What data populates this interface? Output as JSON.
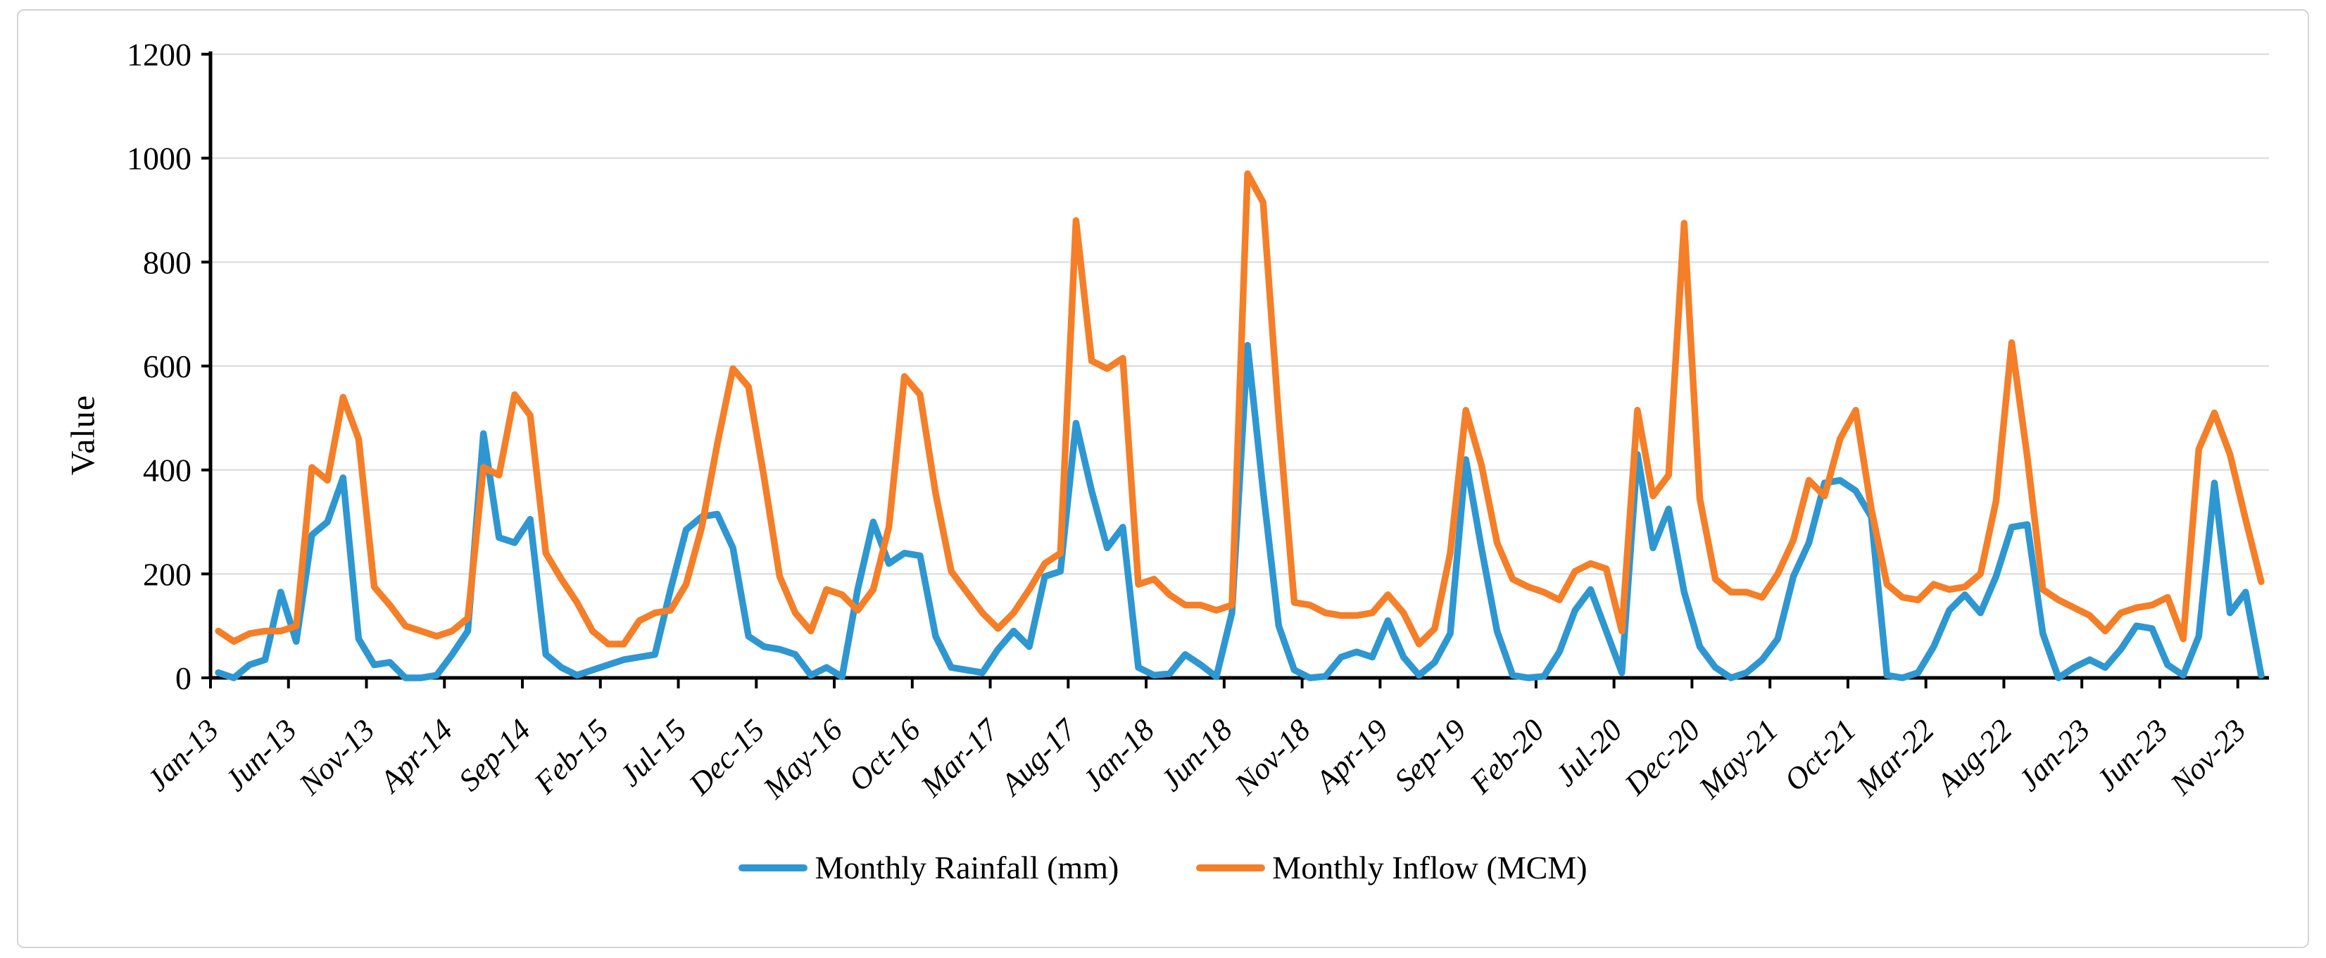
{
  "figure": {
    "y_axis_title": "Value",
    "background_color": "#FFFFFF",
    "card_border_color": "#D4D4D4",
    "gridline_color": "#D9D9D9",
    "axis_color": "#000000"
  },
  "legend": {
    "items": [
      {
        "label": "Monthly Rainfall (mm)",
        "color": "#2E97D1"
      },
      {
        "label": "Monthly Inflow (MCM)",
        "color": "#F47F28"
      }
    ]
  },
  "chart_data": {
    "type": "line",
    "title": "",
    "xlabel": "",
    "ylabel": "Value",
    "ylim": [
      0,
      1200
    ],
    "y_ticks": [
      0,
      200,
      400,
      600,
      800,
      1000,
      1200
    ],
    "grid": "horizontal",
    "legend_position": "bottom",
    "x_tick_every": 5,
    "x_tick_labels": [
      "Jan-13",
      "Jun-13",
      "Nov-13",
      "Apr-14",
      "Sep-14",
      "Feb-15",
      "Jul-15",
      "Dec-15",
      "May-16",
      "Oct-16",
      "Mar-17",
      "Aug-17",
      "Jan-18",
      "Jun-18",
      "Nov-18",
      "Apr-19",
      "Sep-19",
      "Feb-20",
      "Jul-20",
      "Dec-20",
      "May-21",
      "Oct-21",
      "Mar-22",
      "Aug-22",
      "Jan-23",
      "Jun-23",
      "Nov-23"
    ],
    "categories": [
      "Jan-13",
      "Feb-13",
      "Mar-13",
      "Apr-13",
      "May-13",
      "Jun-13",
      "Jul-13",
      "Aug-13",
      "Sep-13",
      "Oct-13",
      "Nov-13",
      "Dec-13",
      "Jan-14",
      "Feb-14",
      "Mar-14",
      "Apr-14",
      "May-14",
      "Jun-14",
      "Jul-14",
      "Aug-14",
      "Sep-14",
      "Oct-14",
      "Nov-14",
      "Dec-14",
      "Jan-15",
      "Feb-15",
      "Mar-15",
      "Apr-15",
      "May-15",
      "Jun-15",
      "Jul-15",
      "Aug-15",
      "Sep-15",
      "Oct-15",
      "Nov-15",
      "Dec-15",
      "Jan-16",
      "Feb-16",
      "Mar-16",
      "Apr-16",
      "May-16",
      "Jun-16",
      "Jul-16",
      "Aug-16",
      "Sep-16",
      "Oct-16",
      "Nov-16",
      "Dec-16",
      "Jan-17",
      "Feb-17",
      "Mar-17",
      "Apr-17",
      "May-17",
      "Jun-17",
      "Jul-17",
      "Aug-17",
      "Sep-17",
      "Oct-17",
      "Nov-17",
      "Dec-17",
      "Jan-18",
      "Feb-18",
      "Mar-18",
      "Apr-18",
      "May-18",
      "Jun-18",
      "Jul-18",
      "Aug-18",
      "Sep-18",
      "Oct-18",
      "Nov-18",
      "Dec-18",
      "Jan-19",
      "Feb-19",
      "Mar-19",
      "Apr-19",
      "May-19",
      "Jun-19",
      "Jul-19",
      "Aug-19",
      "Sep-19",
      "Oct-19",
      "Nov-19",
      "Dec-19",
      "Jan-20",
      "Feb-20",
      "Mar-20",
      "Apr-20",
      "May-20",
      "Jun-20",
      "Jul-20",
      "Aug-20",
      "Sep-20",
      "Oct-20",
      "Nov-20",
      "Dec-20",
      "Jan-21",
      "Feb-21",
      "Mar-21",
      "Apr-21",
      "May-21",
      "Jun-21",
      "Jul-21",
      "Aug-21",
      "Sep-21",
      "Oct-21",
      "Nov-21",
      "Dec-21",
      "Jan-22",
      "Feb-22",
      "Mar-22",
      "Apr-22",
      "May-22",
      "Jun-22",
      "Jul-22",
      "Aug-22",
      "Sep-22",
      "Oct-22",
      "Nov-22",
      "Dec-22",
      "Jan-23",
      "Feb-23",
      "Mar-23",
      "Apr-23",
      "May-23",
      "Jun-23",
      "Jul-23",
      "Aug-23",
      "Sep-23",
      "Oct-23",
      "Nov-23",
      "Dec-23"
    ],
    "series": [
      {
        "name": "Monthly Rainfall (mm)",
        "color": "#2E97D1",
        "values": [
          10,
          0,
          25,
          35,
          165,
          70,
          275,
          300,
          385,
          75,
          25,
          30,
          0,
          0,
          5,
          45,
          90,
          470,
          270,
          260,
          305,
          45,
          20,
          5,
          15,
          25,
          35,
          40,
          45,
          170,
          285,
          310,
          315,
          250,
          80,
          60,
          55,
          45,
          5,
          20,
          2,
          170,
          300,
          220,
          240,
          235,
          80,
          20,
          15,
          10,
          55,
          90,
          60,
          195,
          205,
          490,
          360,
          250,
          290,
          20,
          5,
          8,
          45,
          25,
          2,
          125,
          640,
          360,
          100,
          15,
          0,
          3,
          40,
          50,
          40,
          110,
          40,
          5,
          30,
          85,
          420,
          250,
          90,
          5,
          0,
          3,
          50,
          130,
          170,
          90,
          10,
          430,
          250,
          325,
          165,
          60,
          20,
          0,
          10,
          35,
          75,
          195,
          260,
          375,
          380,
          360,
          310,
          5,
          0,
          10,
          60,
          130,
          160,
          125,
          195,
          290,
          295,
          85,
          0,
          20,
          35,
          20,
          55,
          100,
          95,
          25,
          5,
          80,
          375,
          125,
          165,
          5
        ]
      },
      {
        "name": "Monthly Inflow (MCM)",
        "color": "#F47F28",
        "values": [
          90,
          70,
          85,
          90,
          90,
          100,
          405,
          380,
          540,
          460,
          175,
          140,
          100,
          90,
          80,
          90,
          115,
          405,
          390,
          545,
          505,
          240,
          190,
          145,
          90,
          65,
          65,
          110,
          125,
          130,
          180,
          290,
          450,
          595,
          560,
          385,
          195,
          125,
          90,
          170,
          160,
          130,
          170,
          290,
          580,
          545,
          355,
          205,
          165,
          125,
          95,
          125,
          170,
          220,
          240,
          880,
          610,
          595,
          615,
          180,
          190,
          160,
          140,
          140,
          130,
          140,
          970,
          915,
          500,
          145,
          140,
          125,
          120,
          120,
          125,
          160,
          125,
          65,
          95,
          240,
          515,
          410,
          260,
          190,
          175,
          165,
          150,
          205,
          220,
          210,
          90,
          515,
          350,
          390,
          875,
          345,
          190,
          165,
          165,
          155,
          200,
          265,
          380,
          350,
          460,
          515,
          325,
          180,
          155,
          150,
          180,
          170,
          175,
          200,
          340,
          645,
          425,
          170,
          150,
          135,
          120,
          90,
          125,
          135,
          140,
          155,
          75,
          440,
          510,
          430,
          305,
          185
        ]
      }
    ]
  }
}
